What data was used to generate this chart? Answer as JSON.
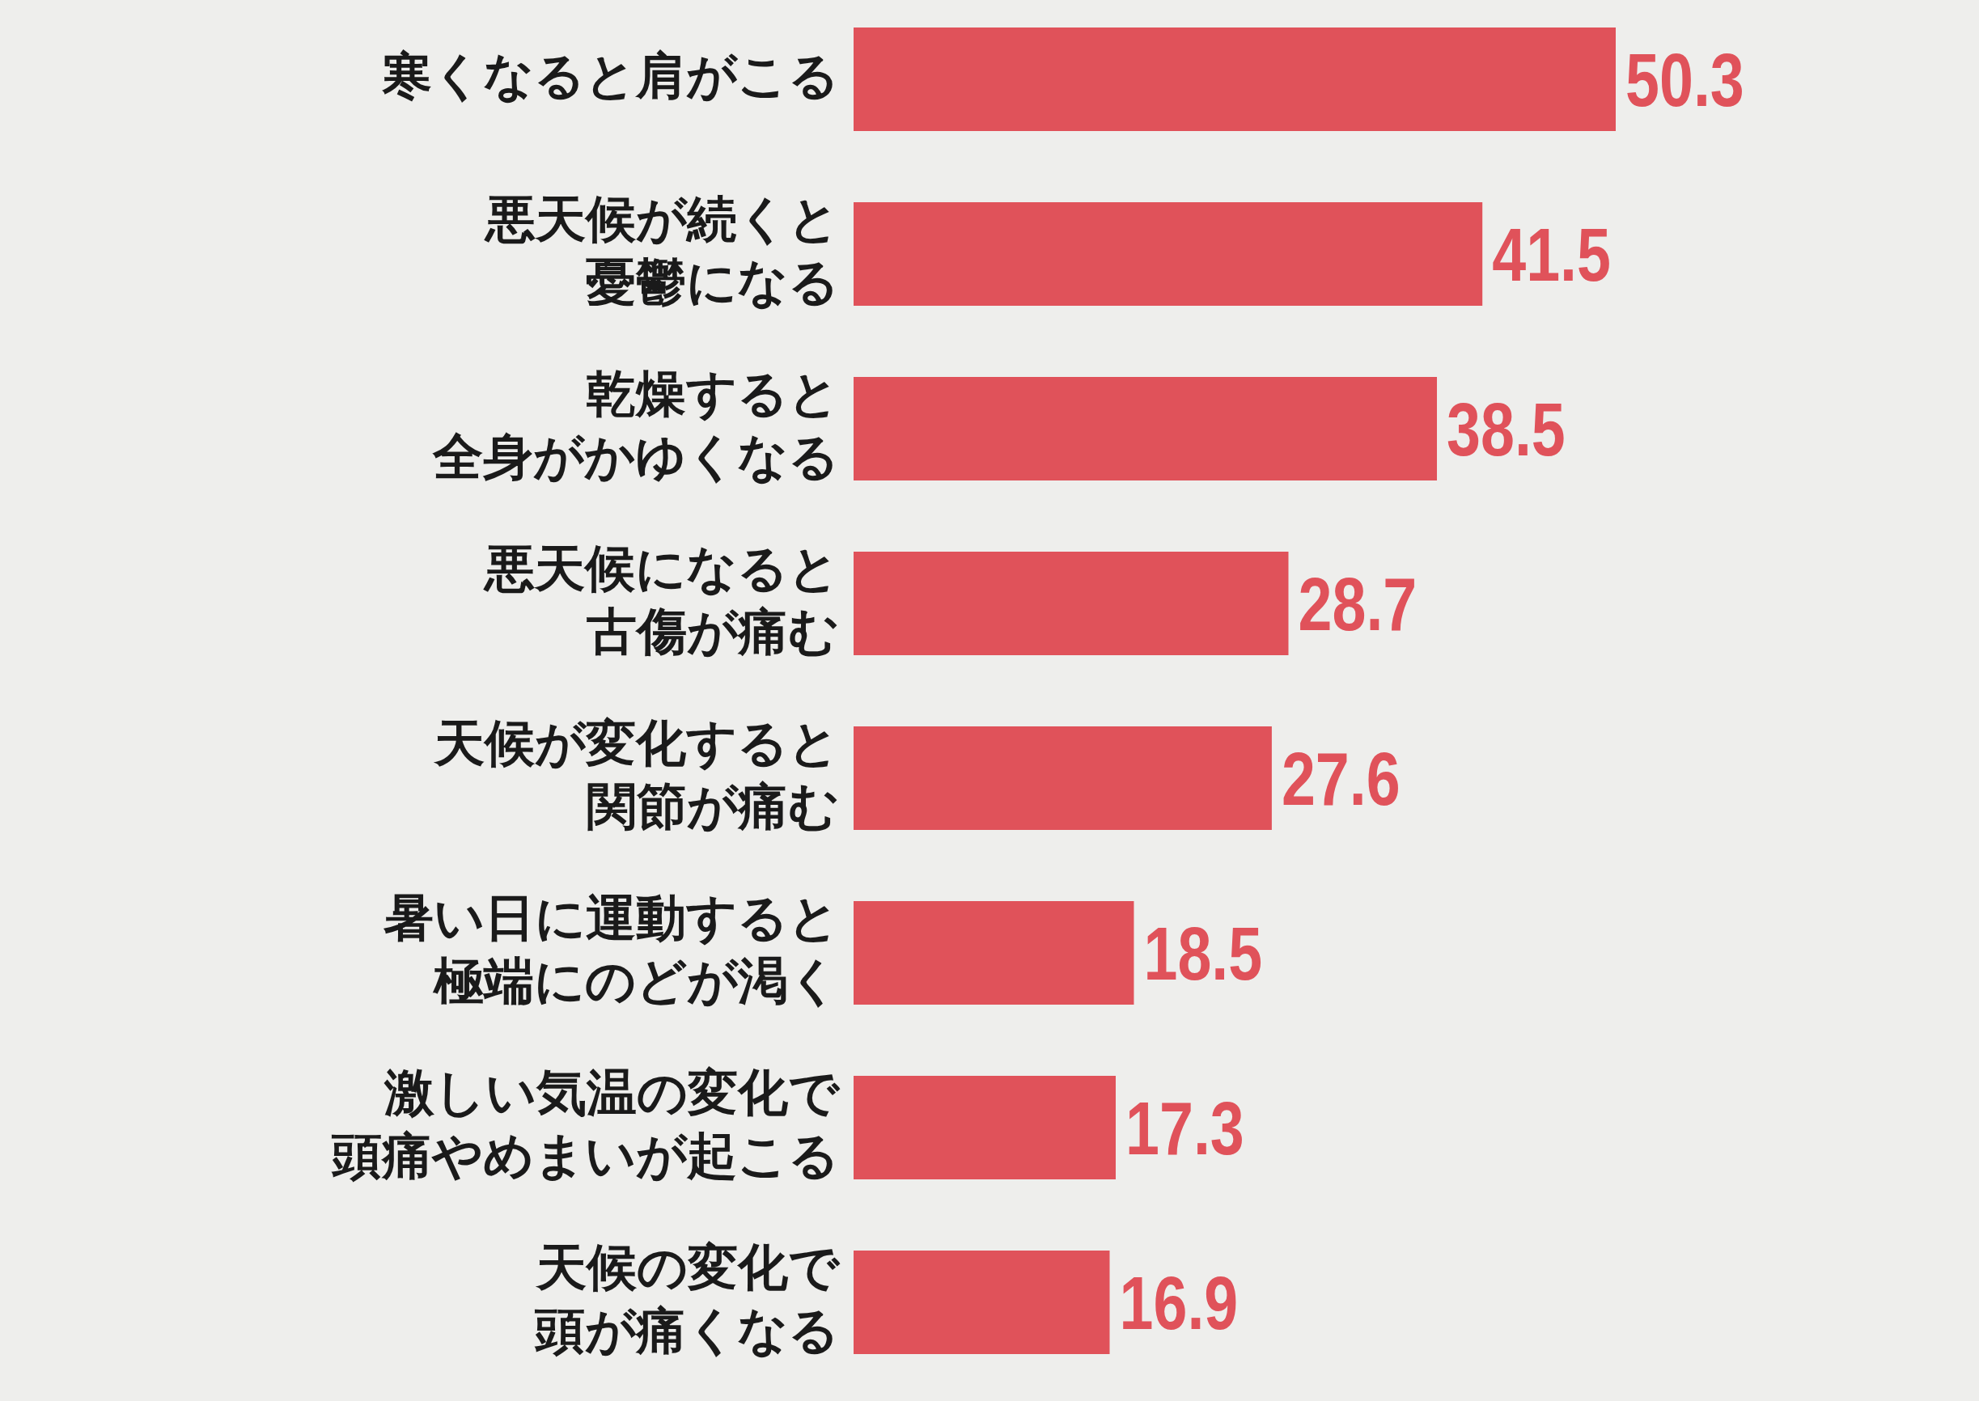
{
  "chart_data": {
    "type": "bar",
    "orientation": "horizontal",
    "data_labels": true,
    "color": "#e0525a",
    "categories": [
      "寒くなると肩がこる",
      "悪天候が続くと憂鬱になる",
      "乾燥すると全身がかゆくなる",
      "悪天候になると古傷が痛む",
      "天候が変化すると関節が痛む",
      "暑い日に運動すると極端にのどが渇く",
      "激しい気温の変化で頭痛やめまいが起こる",
      "天候の変化で頭が痛くなる"
    ],
    "values": [
      50.3,
      41.5,
      38.5,
      28.7,
      27.6,
      18.5,
      17.3,
      16.9
    ]
  }
}
